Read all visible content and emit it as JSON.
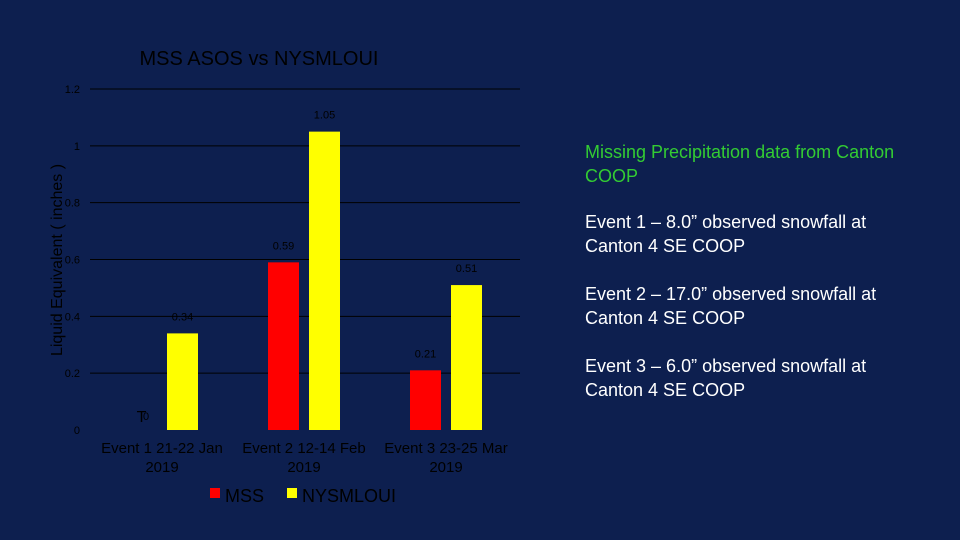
{
  "chart_data": {
    "type": "bar",
    "title": "MSS ASOS vs NYSMLOUI",
    "ylabel": "Liquid Equivalent ( inches )",
    "xlabel": "",
    "ylim": [
      0,
      1.2
    ],
    "yticks": [
      "0",
      "0.2",
      "0.4",
      "0.6",
      "0.8",
      "1",
      "1.2"
    ],
    "categories": [
      [
        "Event 1 21-22 Jan",
        "2019"
      ],
      [
        "Event 2 12-14 Feb",
        "2019"
      ],
      [
        "Event 3 23-25 Mar",
        "2019"
      ]
    ],
    "series": [
      {
        "name": "MSS",
        "color": "#ff0000",
        "values": [
          0,
          0.59,
          0.21
        ],
        "labels": [
          "T",
          "0.59",
          "0.21"
        ]
      },
      {
        "name": "NYSMLOUI",
        "color": "#ffff00",
        "values": [
          0.34,
          1.05,
          0.51
        ],
        "labels": [
          "0.34",
          "1.05",
          "0.51"
        ]
      }
    ],
    "extra_labels": [
      {
        "text": "0"
      }
    ],
    "grid": true,
    "legend": "bottom"
  },
  "notes": {
    "missing": "Missing Precipitation data from Canton COOP",
    "event1": "Event 1 – 8.0” observed snowfall at Canton 4 SE COOP",
    "event2": "Event 2 – 17.0” observed snowfall at Canton 4 SE COOP",
    "event3": "Event 3 – 6.0” observed snowfall at Canton 4 SE COOP"
  },
  "colors": {
    "background": "#0d1f4f",
    "missing_note": "#33cc33"
  }
}
